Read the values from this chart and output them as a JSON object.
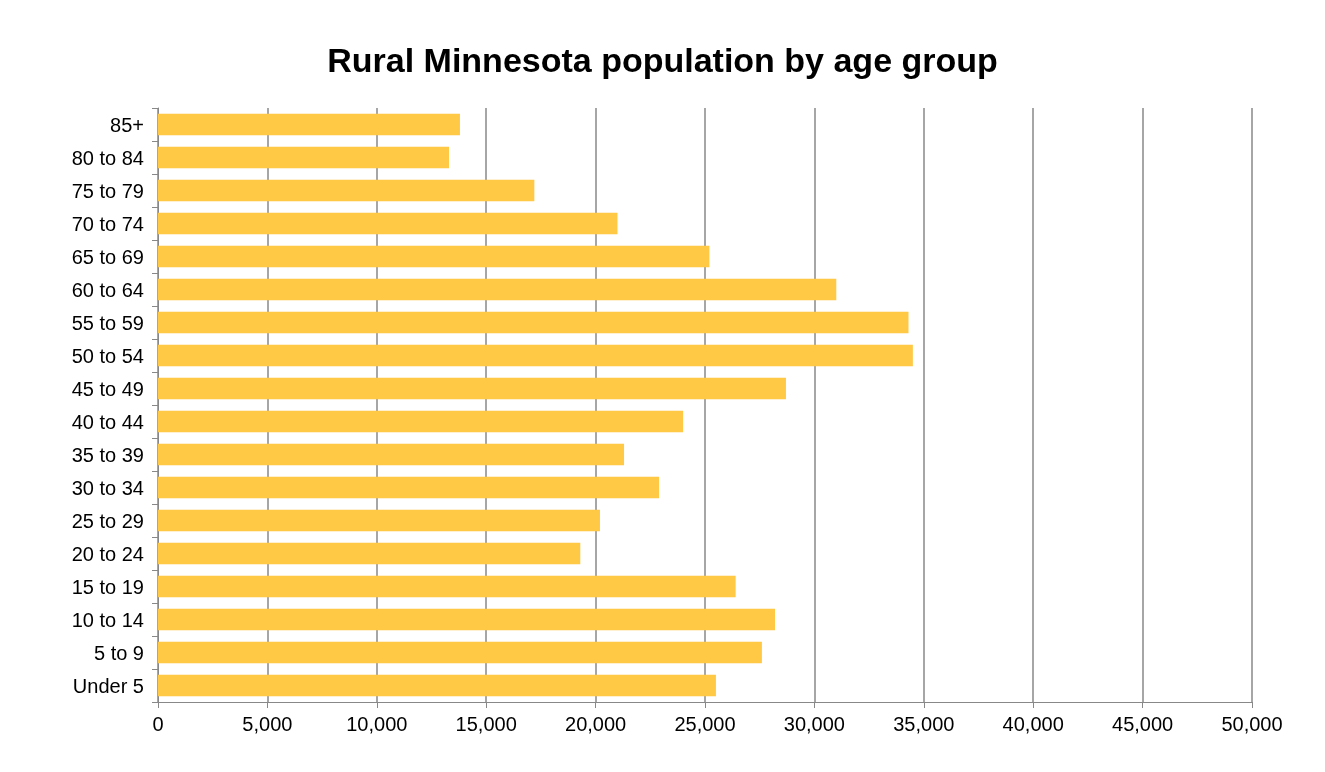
{
  "chart_data": {
    "type": "bar",
    "orientation": "horizontal",
    "title": "Rural Minnesota population by age group",
    "categories": [
      "85+",
      "80 to 84",
      "75 to 79",
      "70 to 74",
      "65 to 69",
      "60 to 64",
      "55 to 59",
      "50 to 54",
      "45 to 49",
      "40 to 44",
      "35 to 39",
      "30 to 34",
      "25 to 29",
      "20 to 24",
      "15 to 19",
      "10 to 14",
      "5 to 9",
      "Under 5"
    ],
    "values": [
      13800,
      13300,
      17200,
      21000,
      25200,
      31000,
      34300,
      34500,
      28700,
      24000,
      21300,
      22900,
      20200,
      19300,
      26400,
      28200,
      27600,
      25500
    ],
    "color": "#ffc845",
    "xlim": [
      0,
      50000
    ],
    "xticks": [
      {
        "value": 0,
        "label": "0"
      },
      {
        "value": 5000,
        "label": "5,000"
      },
      {
        "value": 10000,
        "label": "10,000"
      },
      {
        "value": 15000,
        "label": "15,000"
      },
      {
        "value": 20000,
        "label": "20,000"
      },
      {
        "value": 25000,
        "label": "25,000"
      },
      {
        "value": 30000,
        "label": "30,000"
      },
      {
        "value": 35000,
        "label": "35,000"
      },
      {
        "value": 40000,
        "label": "40,000"
      },
      {
        "value": 45000,
        "label": "45,000"
      },
      {
        "value": 50000,
        "label": "50,000"
      }
    ],
    "grid": "x"
  }
}
